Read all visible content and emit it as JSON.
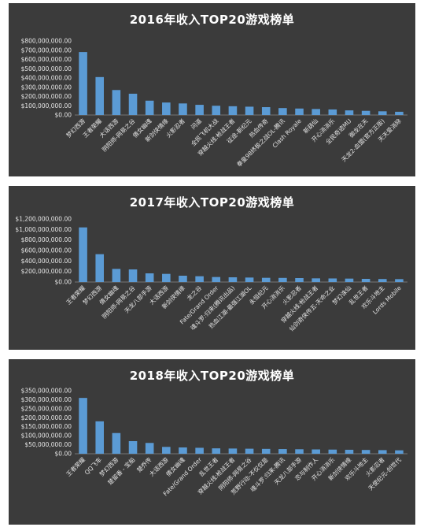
{
  "chart_data": [
    {
      "type": "bar",
      "title": "2016年收入TOP20游戏榜单",
      "color": "#5b9bd5",
      "ylim": [
        0,
        800000000
      ],
      "yticks": [
        "$0.00",
        "$100,000,000.00",
        "$200,000,000.00",
        "$300,000,000.00",
        "$400,000,000.00",
        "$500,000,000.00",
        "$600,000,000.00",
        "$700,000,000.00",
        "$800,000,000.00"
      ],
      "categories": [
        "梦幻西游",
        "王者荣耀",
        "大话西游",
        "阴阳师-网易之谷",
        "倩女幽魂",
        "新剑侠情缘",
        "火影忍者",
        "问道",
        "全民飞机大战",
        "穿越火线:枪战王者",
        "征途-新纪元",
        "热血传奇",
        "拳皇98终极之战OL-腾讯",
        "Clash Royale",
        "新葫仙",
        "开心消消乐",
        "全民奇迹MU",
        "御龙在天",
        "天龙2-血盟(官方正版)",
        "天天爱消除"
      ],
      "values": [
        680000000,
        410000000,
        270000000,
        230000000,
        155000000,
        135000000,
        125000000,
        110000000,
        100000000,
        95000000,
        90000000,
        85000000,
        75000000,
        70000000,
        65000000,
        60000000,
        50000000,
        45000000,
        40000000,
        35000000
      ],
      "xlabel": "",
      "ylabel": "",
      "grid": false
    },
    {
      "type": "bar",
      "title": "2017年收入TOP20游戏榜单",
      "color": "#5b9bd5",
      "ylim": [
        0,
        1200000000
      ],
      "yticks": [
        "$0.00",
        "$200,000,000.00",
        "$400,000,000.00",
        "$600,000,000.00",
        "$800,000,000.00",
        "$1,000,000,000.00",
        "$1,200,000,000.00"
      ],
      "categories": [
        "王者荣耀",
        "梦幻西游",
        "倩女幽魂",
        "阴阳师-网易之谷",
        "天龙八部手游",
        "大话西游",
        "新剑侠情缘",
        "龙之谷",
        "Fate/Grand Order",
        "魂斗罗:归来(腾讯出品)",
        "热血江湖-最强江湖OL",
        "永恒纪元",
        "开心消消乐",
        "火影忍者",
        "穿越火线:枪战王者",
        "仙剑奇侠传五-天命之业",
        "梦幻诛仙",
        "乱世王者",
        "欢乐斗地主",
        "Lords Mobile"
      ],
      "values": [
        1040000000,
        530000000,
        250000000,
        240000000,
        165000000,
        155000000,
        120000000,
        110000000,
        95000000,
        90000000,
        85000000,
        80000000,
        78000000,
        75000000,
        70000000,
        68000000,
        65000000,
        60000000,
        57000000,
        55000000
      ],
      "xlabel": "",
      "ylabel": "",
      "grid": false
    },
    {
      "type": "bar",
      "title": "2018年收入TOP20游戏榜单",
      "color": "#5b9bd5",
      "ylim": [
        0,
        350000000
      ],
      "yticks": [
        "$0.00",
        "$50,000,000.00",
        "$100,000,000.00",
        "$150,000,000.00",
        "$200,000,000.00",
        "$250,000,000.00",
        "$300,000,000.00",
        "$350,000,000.00"
      ],
      "categories": [
        "王者荣耀",
        "QQ飞车",
        "梦幻西游",
        "楚留香 - 宝船",
        "楚乔传",
        "大话西游",
        "倩女幽魂",
        "Fate/Grand Order",
        "乱世王者",
        "穿越火线:枪战王者",
        "阴阳师-网易之谷",
        "荒野行动-不仅仅是",
        "魂斗罗:归来-腾讯",
        "天龙八部手游",
        "恋与制作人",
        "开心消消乐",
        "新剑侠情缘",
        "欢乐斗地主",
        "火影忍者",
        "天使纪元-创世代"
      ],
      "values": [
        310000000,
        180000000,
        115000000,
        70000000,
        60000000,
        38000000,
        35000000,
        33000000,
        30000000,
        29000000,
        28000000,
        27000000,
        26000000,
        25000000,
        24000000,
        23000000,
        22000000,
        21000000,
        20000000,
        19000000
      ],
      "xlabel": "",
      "ylabel": "",
      "grid": false
    }
  ]
}
